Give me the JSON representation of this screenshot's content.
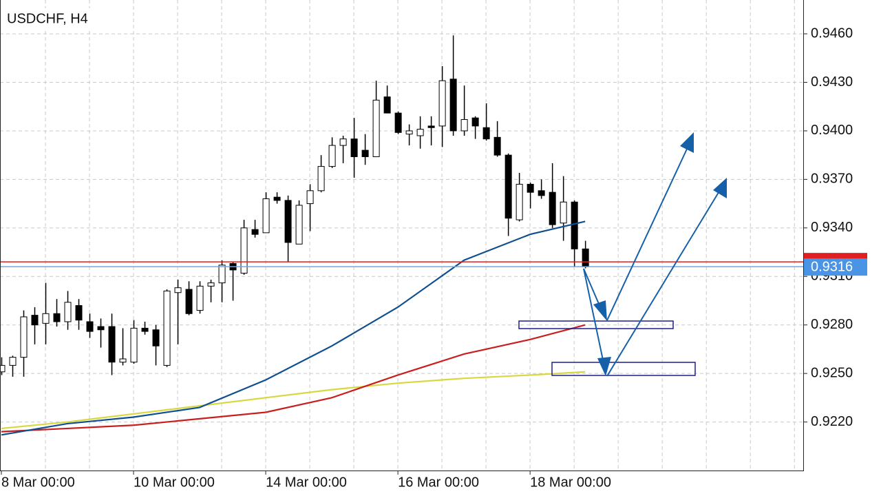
{
  "chart_data": {
    "type": "candlestick",
    "title": "USDCHF, H4",
    "xlim": [
      -0.125,
      72.8
    ],
    "ylim": [
      0.919,
      0.94809
    ],
    "xticks": [
      {
        "value": 0,
        "label": "8 Mar 00:00"
      },
      {
        "value": 12,
        "label": "10 Mar 00:00"
      },
      {
        "value": 24,
        "label": "14 Mar 00:00"
      },
      {
        "value": 36,
        "label": "16 Mar 00:00"
      },
      {
        "value": 48,
        "label": "18 Mar 00:00"
      }
    ],
    "xgrid": [
      4,
      8,
      12,
      16,
      20,
      24,
      28,
      32,
      36,
      40,
      44,
      48,
      52,
      56,
      60,
      64,
      68,
      72
    ],
    "yticks": [
      {
        "value": 0.922,
        "label": "0.9220"
      },
      {
        "value": 0.925,
        "label": "0.9250"
      },
      {
        "value": 0.928,
        "label": "0.9280"
      },
      {
        "value": 0.931,
        "label": "0.9310"
      },
      {
        "value": 0.934,
        "label": "0.9340"
      },
      {
        "value": 0.937,
        "label": "0.9370"
      },
      {
        "value": 0.94,
        "label": "0.9400"
      },
      {
        "value": 0.943,
        "label": "0.9430"
      },
      {
        "value": 0.946,
        "label": "0.9460"
      }
    ],
    "grid": true,
    "open": [
      0.9251,
      0.9255,
      0.926,
      0.9286,
      0.9281,
      0.9287,
      0.9282,
      0.9292,
      0.9282,
      0.9279,
      0.9279,
      0.9257,
      0.9257,
      0.9278,
      0.9277,
      0.9255,
      0.93,
      0.9302,
      0.9289,
      0.9304,
      0.9306,
      0.9318,
      0.9312,
      0.9339,
      0.9337,
      0.9359,
      0.9357,
      0.933,
      0.9355,
      0.9363,
      0.9378,
      0.9391,
      0.9395,
      0.9388,
      0.9384,
      0.9421,
      0.9411,
      0.9398,
      0.9397,
      0.9403,
      0.9403,
      0.9432,
      0.94,
      0.9408,
      0.9402,
      0.9396,
      0.9385,
      0.9345,
      0.9367,
      0.9363,
      0.9362,
      0.9343,
      0.9356,
      0.9327
    ],
    "high": [
      0.926,
      0.9261,
      0.9289,
      0.9291,
      0.9306,
      0.9296,
      0.9301,
      0.9296,
      0.9287,
      0.9284,
      0.9287,
      0.9278,
      0.9283,
      0.9282,
      0.928,
      0.9302,
      0.9308,
      0.9307,
      0.9307,
      0.9308,
      0.932,
      0.9319,
      0.9345,
      0.9345,
      0.9362,
      0.9362,
      0.936,
      0.9357,
      0.9367,
      0.9385,
      0.9396,
      0.9397,
      0.9408,
      0.9398,
      0.9431,
      0.9428,
      0.9412,
      0.9404,
      0.9409,
      0.9409,
      0.944,
      0.9459,
      0.9428,
      0.9409,
      0.9417,
      0.9406,
      0.9386,
      0.9374,
      0.9368,
      0.937,
      0.938,
      0.9372,
      0.9357,
      0.9332
    ],
    "low": [
      0.9249,
      0.9248,
      0.9248,
      0.9268,
      0.9268,
      0.9279,
      0.9277,
      0.9277,
      0.9272,
      0.9266,
      0.9249,
      0.9255,
      0.9256,
      0.9274,
      0.9255,
      0.9254,
      0.9268,
      0.9286,
      0.9287,
      0.9294,
      0.9294,
      0.9295,
      0.9311,
      0.9334,
      0.9337,
      0.9355,
      0.9319,
      0.933,
      0.9338,
      0.9362,
      0.9377,
      0.938,
      0.9371,
      0.9379,
      0.9384,
      0.9411,
      0.9398,
      0.9391,
      0.9389,
      0.9391,
      0.939,
      0.9397,
      0.9397,
      0.9395,
      0.9394,
      0.9384,
      0.9335,
      0.9344,
      0.9352,
      0.9358,
      0.934,
      0.9332,
      0.9316,
      0.9315
    ],
    "close": [
      0.9255,
      0.926,
      0.9285,
      0.928,
      0.9287,
      0.9282,
      0.9294,
      0.9283,
      0.9276,
      0.9277,
      0.9257,
      0.9259,
      0.9278,
      0.9276,
      0.9267,
      0.9301,
      0.9303,
      0.9287,
      0.9304,
      0.9306,
      0.9317,
      0.9314,
      0.934,
      0.9336,
      0.9358,
      0.9357,
      0.9331,
      0.9354,
      0.9363,
      0.9378,
      0.9391,
      0.9395,
      0.9384,
      0.9384,
      0.9419,
      0.9411,
      0.9399,
      0.94,
      0.9401,
      0.9402,
      0.9431,
      0.94,
      0.9407,
      0.9403,
      0.9395,
      0.9385,
      0.9346,
      0.9367,
      0.9362,
      0.936,
      0.9342,
      0.9356,
      0.9327,
      0.9316
    ],
    "moving_averages": [
      {
        "color": "#d7d740",
        "x": [
          0,
          6,
          12,
          18,
          24,
          30,
          36,
          42,
          48,
          53
        ],
        "values": [
          0.9216,
          0.922,
          0.9225,
          0.923,
          0.9235,
          0.924,
          0.9244,
          0.9247,
          0.9249,
          0.9251
        ]
      },
      {
        "color": "#c81e1e",
        "x": [
          0,
          6,
          12,
          18,
          24,
          30,
          36,
          42,
          48,
          53
        ],
        "values": [
          0.9214,
          0.9216,
          0.9218,
          0.9222,
          0.9226,
          0.9235,
          0.9249,
          0.9262,
          0.9271,
          0.928
        ]
      },
      {
        "color": "#0f4f8f",
        "x": [
          0,
          6,
          12,
          18,
          24,
          30,
          36,
          42,
          48,
          53
        ],
        "values": [
          0.9212,
          0.9219,
          0.9223,
          0.9229,
          0.9246,
          0.9267,
          0.9291,
          0.932,
          0.9336,
          0.9344
        ]
      }
    ],
    "ask_line": 0.9319,
    "bid_line": 0.9316
  }
}
